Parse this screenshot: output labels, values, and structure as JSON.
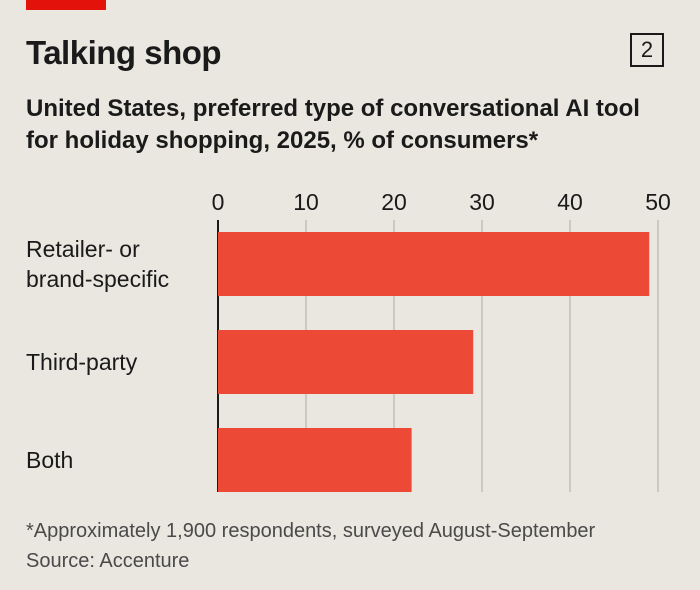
{
  "header": {
    "title": "Talking shop",
    "chart_number": "2",
    "subtitle": "United States, preferred type of conversational AI tool for holiday shopping, 2025, % of consumers*"
  },
  "footer": {
    "note": "*Approximately 1,900 respondents, surveyed August-September",
    "source": "Source: Accenture"
  },
  "colors": {
    "accent": "#e3120b",
    "bar": "#ec4a37",
    "background": "#e9e7df",
    "grid": "#b8b6ae"
  },
  "chart_data": {
    "type": "bar",
    "orientation": "horizontal",
    "title": "Talking shop",
    "subtitle": "United States, preferred type of conversational AI tool for holiday shopping, 2025, % of consumers*",
    "categories": [
      [
        "Retailer- or",
        "brand-specific"
      ],
      [
        "Third-party"
      ],
      [
        "Both"
      ]
    ],
    "values": [
      49,
      29,
      22
    ],
    "xlim": [
      0,
      50
    ],
    "xticks": [
      0,
      10,
      20,
      30,
      40,
      50
    ],
    "xaxis_position": "top",
    "grid": true
  }
}
